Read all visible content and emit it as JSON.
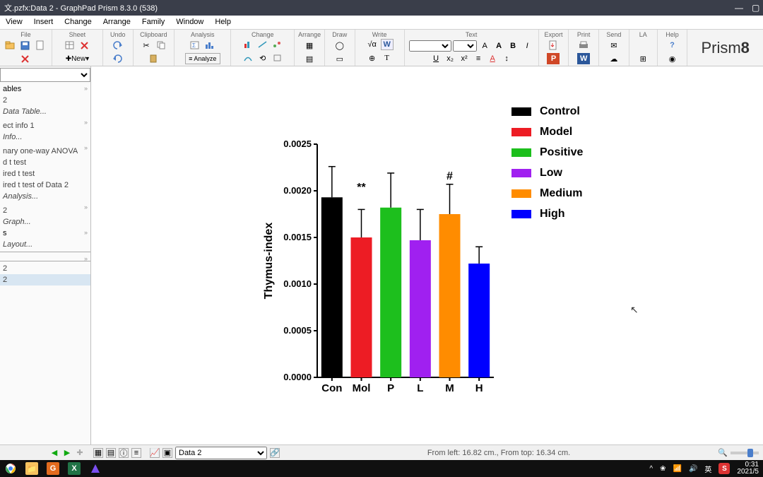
{
  "title": "文.pzfx:Data 2 - GraphPad Prism 8.3.0 (538)",
  "menu": [
    "View",
    "Insert",
    "Change",
    "Arrange",
    "Family",
    "Window",
    "Help"
  ],
  "ribbon_groups": [
    "File",
    "Sheet",
    "Undo",
    "Clipboard",
    "Analysis",
    "Change",
    "Arrange",
    "Draw",
    "Write",
    "Text",
    "Export",
    "Print",
    "Send",
    "LA",
    "Help"
  ],
  "newbtn_label": "New",
  "logo_text": "Prism",
  "logo_ver": "8",
  "sidebar": {
    "tables_h": "ables",
    "tables_item": "2",
    "new_table": "Data Table...",
    "info_h": "ect info 1",
    "info_new": "Info...",
    "res1": "nary one-way ANOVA",
    "res2": "d t test",
    "res3": "ired t test",
    "res4": "ired t test of Data 2",
    "new_analysis": "Analysis...",
    "graph_item": "2",
    "new_graph": "Graph...",
    "layout_h": "s",
    "new_layout": "Layout...",
    "fam1": "2",
    "fam2": "2"
  },
  "chart": {
    "type": "bar",
    "ylabel": "Thymus-index",
    "ylim": [
      0,
      0.0025
    ],
    "ytick_step": 0.0005,
    "ytick_labels": [
      "0.0000",
      "0.0005",
      "0.0010",
      "0.0015",
      "0.0020",
      "0.0025"
    ],
    "categories": [
      "Con",
      "Mol",
      "P",
      "L",
      "M",
      "H"
    ],
    "values": [
      0.00193,
      0.0015,
      0.00182,
      0.00147,
      0.00175,
      0.00122
    ],
    "err": [
      0.00033,
      0.0003,
      0.00037,
      0.00033,
      0.00032,
      0.00018
    ],
    "bar_colors": [
      "#000000",
      "#ed1c24",
      "#1dbf1d",
      "#a020f0",
      "#ff8c00",
      "#0000ff"
    ],
    "bar_width": 0.72,
    "axis_color": "#000000",
    "axis_width": 2,
    "label_fontsize": 15,
    "tick_fontsize": 13,
    "ylabel_fontsize": 16,
    "annotations": [
      {
        "text": "**",
        "bar_index": 1,
        "y": 0.002
      },
      {
        "text": "#",
        "bar_index": 4,
        "y": 0.00212
      }
    ]
  },
  "legend": [
    {
      "label": "Control",
      "color": "#000000"
    },
    {
      "label": "Model",
      "color": "#ed1c24"
    },
    {
      "label": "Positive",
      "color": "#1dbf1d"
    },
    {
      "label": "Low",
      "color": "#a020f0"
    },
    {
      "label": "Medium",
      "color": "#ff8c00"
    },
    {
      "label": "High",
      "color": "#0000ff"
    }
  ],
  "status": {
    "sheet_sel": "Data 2",
    "coord": "From left: 16.82 cm., From top: 16.34 cm."
  },
  "tray": {
    "time": "0:31",
    "date": "2021/5",
    "ime": "英"
  }
}
